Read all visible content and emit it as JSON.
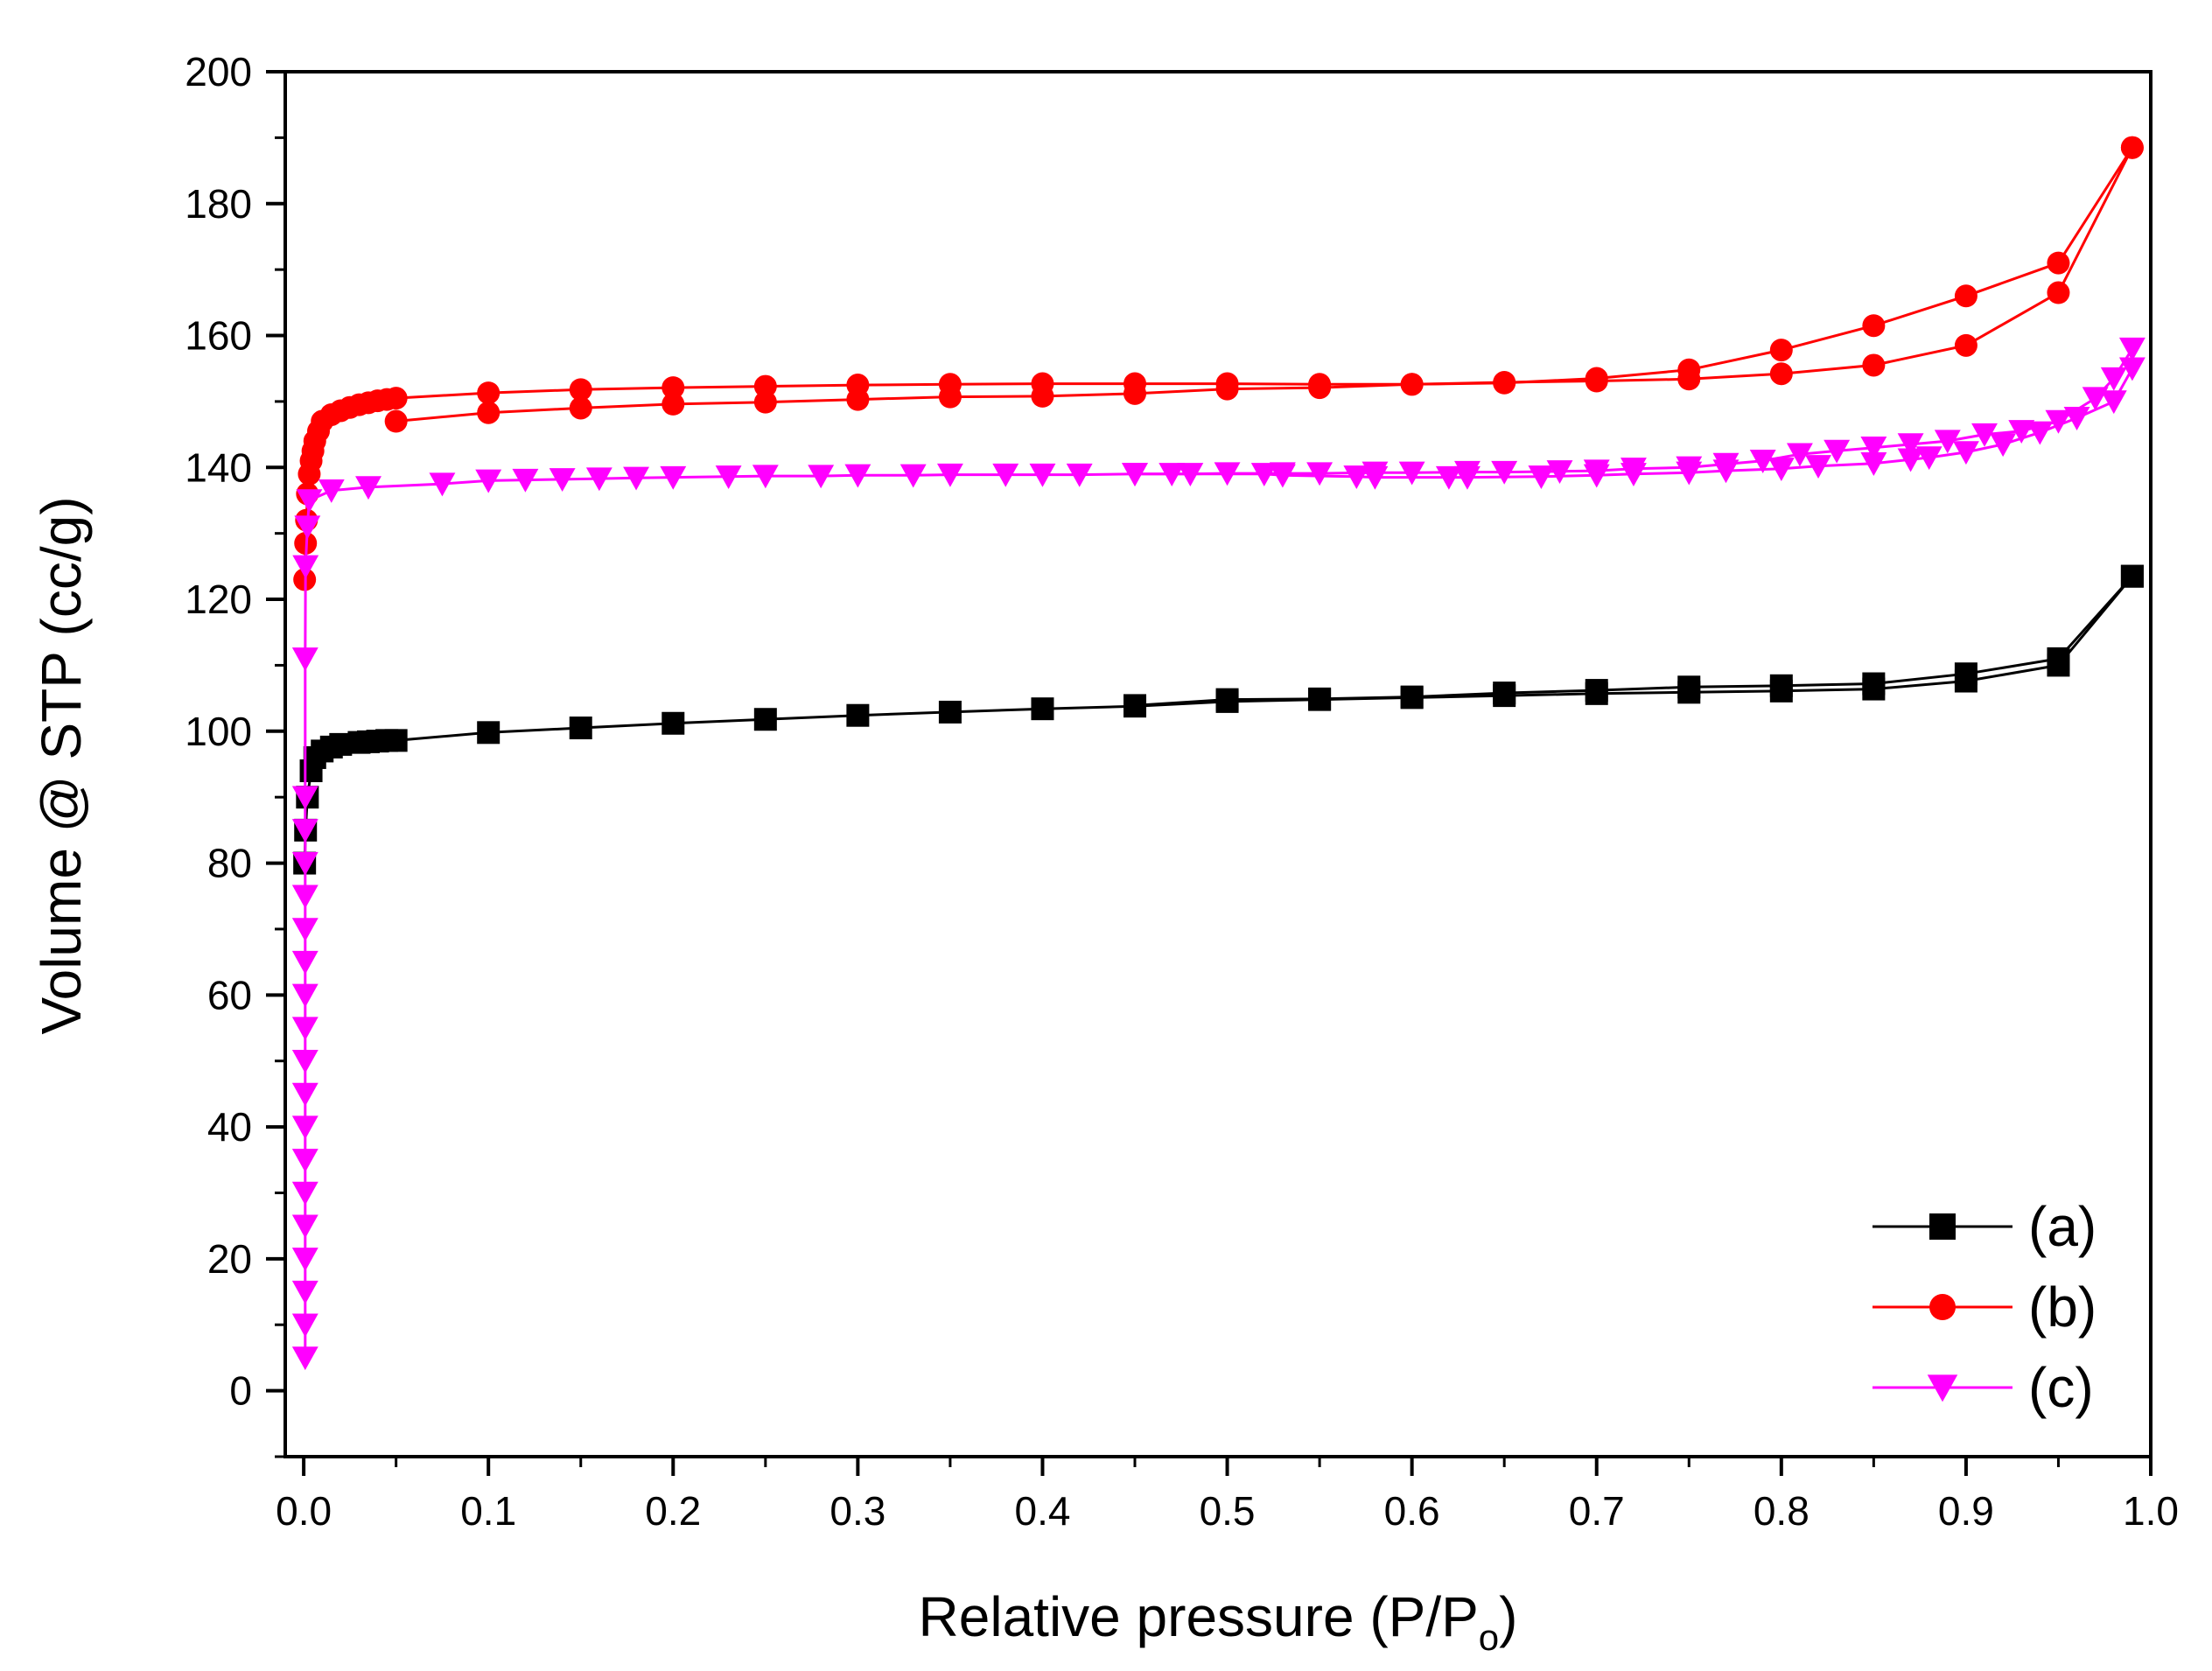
{
  "chart_data": {
    "type": "line",
    "title": "",
    "xlabel": "Relative pressure (P/P",
    "xlabel_sub": "o",
    "xlabel_end": ")",
    "ylabel": "Volume @ STP (cc/g)",
    "xlim": [
      -0.01,
      1.0
    ],
    "ylim": [
      -10,
      200
    ],
    "x_ticks": [
      "0.0",
      "0.1",
      "0.2",
      "0.3",
      "0.4",
      "0.5",
      "0.6",
      "0.7",
      "0.8",
      "0.9",
      "1.0"
    ],
    "y_ticks": [
      "0",
      "20",
      "40",
      "60",
      "80",
      "100",
      "120",
      "140",
      "160",
      "180",
      "200"
    ],
    "legend_position": "bottom-right",
    "series": [
      {
        "name": "(a)",
        "color": "#000000",
        "marker": "square",
        "adsorption": {
          "x": [
            0.0005,
            0.001,
            0.002,
            0.004,
            0.006,
            0.01,
            0.015,
            0.02,
            0.03,
            0.035,
            0.04,
            0.045,
            0.05,
            0.1,
            0.15,
            0.2,
            0.25,
            0.3,
            0.35,
            0.4,
            0.45,
            0.5,
            0.55,
            0.6,
            0.65,
            0.7,
            0.75,
            0.8,
            0.85,
            0.9,
            0.95,
            0.99
          ],
          "y": [
            80,
            85,
            90,
            94,
            96,
            97,
            97.6,
            98,
            98.3,
            98.4,
            98.5,
            98.6,
            98.6,
            99.8,
            100.5,
            101.2,
            101.8,
            102.4,
            102.9,
            103.4,
            103.8,
            104.5,
            104.8,
            105.1,
            105.4,
            105.7,
            105.9,
            106.1,
            106.4,
            107.6,
            110,
            123.5
          ]
        },
        "desorption": {
          "x": [
            0.99,
            0.95,
            0.9,
            0.85,
            0.8,
            0.75,
            0.7,
            0.65,
            0.6,
            0.55,
            0.5,
            0.45
          ],
          "y": [
            123.5,
            111,
            108.7,
            107.2,
            106.9,
            106.7,
            106.2,
            105.8,
            105.2,
            104.9,
            104.8,
            103.9
          ]
        }
      },
      {
        "name": "(b)",
        "color": "#ff0000",
        "marker": "circle",
        "adsorption": {
          "x": [
            0.0005,
            0.001,
            0.0015,
            0.002,
            0.003,
            0.004,
            0.005,
            0.006,
            0.008,
            0.01,
            0.015,
            0.02,
            0.025,
            0.03,
            0.035,
            0.04,
            0.045,
            0.05,
            0.1,
            0.15,
            0.2,
            0.25,
            0.3,
            0.35,
            0.4,
            0.45,
            0.5,
            0.55,
            0.6,
            0.65,
            0.7,
            0.75,
            0.8,
            0.85,
            0.9,
            0.95,
            0.99
          ],
          "y": [
            123,
            128.5,
            132,
            136,
            139,
            141,
            142.5,
            144,
            145.5,
            147,
            148,
            148.6,
            149.1,
            149.5,
            149.8,
            150.1,
            150.3,
            150.5,
            151.3,
            151.8,
            152.1,
            152.3,
            152.5,
            152.6,
            152.7,
            152.7,
            152.7,
            152.6,
            152.6,
            152.8,
            153.5,
            154.8,
            157.8,
            161.5,
            166,
            171,
            188.5
          ]
        },
        "desorption": {
          "x": [
            0.99,
            0.95,
            0.9,
            0.85,
            0.8,
            0.75,
            0.7,
            0.65,
            0.6,
            0.55,
            0.5,
            0.45,
            0.4,
            0.35,
            0.3,
            0.25,
            0.2,
            0.15,
            0.1,
            0.05
          ],
          "y": [
            188.5,
            166.5,
            158.5,
            155.5,
            154.2,
            153.4,
            153.1,
            152.9,
            152.6,
            152.1,
            151.9,
            151.2,
            150.8,
            150.7,
            150.3,
            149.9,
            149.6,
            149,
            148.3,
            147
          ]
        }
      },
      {
        "name": "(c)",
        "color": "#ff00ff",
        "marker": "triangle-down",
        "adsorption": {
          "x": [
            0.0008,
            0.0008,
            0.0008,
            0.0008,
            0.0008,
            0.0008,
            0.0008,
            0.0008,
            0.0008,
            0.0008,
            0.0008,
            0.0008,
            0.0008,
            0.0008,
            0.0008,
            0.0008,
            0.0008,
            0.0008,
            0.0008,
            0.001,
            0.002,
            0.003,
            0.015,
            0.035,
            0.075,
            0.1,
            0.12,
            0.14,
            0.16,
            0.18,
            0.2,
            0.23,
            0.25,
            0.28,
            0.3,
            0.33,
            0.35,
            0.38,
            0.4,
            0.42,
            0.45,
            0.47,
            0.52,
            0.53,
            0.57,
            0.58,
            0.62,
            0.63,
            0.67,
            0.7,
            0.72,
            0.75,
            0.77,
            0.8,
            0.82,
            0.85,
            0.87,
            0.88,
            0.9,
            0.92,
            0.94,
            0.96,
            0.98,
            0.99
          ],
          "y": [
            5,
            10,
            15,
            20,
            25,
            30,
            35,
            40,
            45,
            50,
            55,
            60,
            65,
            70,
            75,
            80,
            85,
            90,
            111,
            125,
            131,
            135,
            136.5,
            137,
            137.5,
            138,
            138.1,
            138.2,
            138.3,
            138.4,
            138.5,
            138.6,
            138.7,
            138.7,
            138.8,
            138.8,
            138.9,
            138.9,
            138.9,
            138.9,
            139,
            139,
            139,
            138.8,
            138.6,
            138.5,
            138.5,
            138.5,
            138.6,
            138.8,
            139,
            139.2,
            139.5,
            139.8,
            140.2,
            140.6,
            141.2,
            141.5,
            142.3,
            143.5,
            145.3,
            147.5,
            150,
            155
          ]
        },
        "desorption": {
          "x": [
            0.99,
            0.98,
            0.97,
            0.95,
            0.93,
            0.91,
            0.89,
            0.87,
            0.85,
            0.83,
            0.81,
            0.79,
            0.77,
            0.75,
            0.72,
            0.7,
            0.68,
            0.65,
            0.63,
            0.6,
            0.58,
            0.55,
            0.53,
            0.5,
            0.48,
            0.45
          ],
          "y": [
            158,
            153.5,
            150.5,
            147,
            145.5,
            145,
            144,
            143.5,
            143,
            142.5,
            142,
            141,
            140.5,
            140,
            139.8,
            139.5,
            139.4,
            139.3,
            139.3,
            139.2,
            139.2,
            139.1,
            139.1,
            139.1,
            139,
            139
          ]
        }
      }
    ]
  }
}
